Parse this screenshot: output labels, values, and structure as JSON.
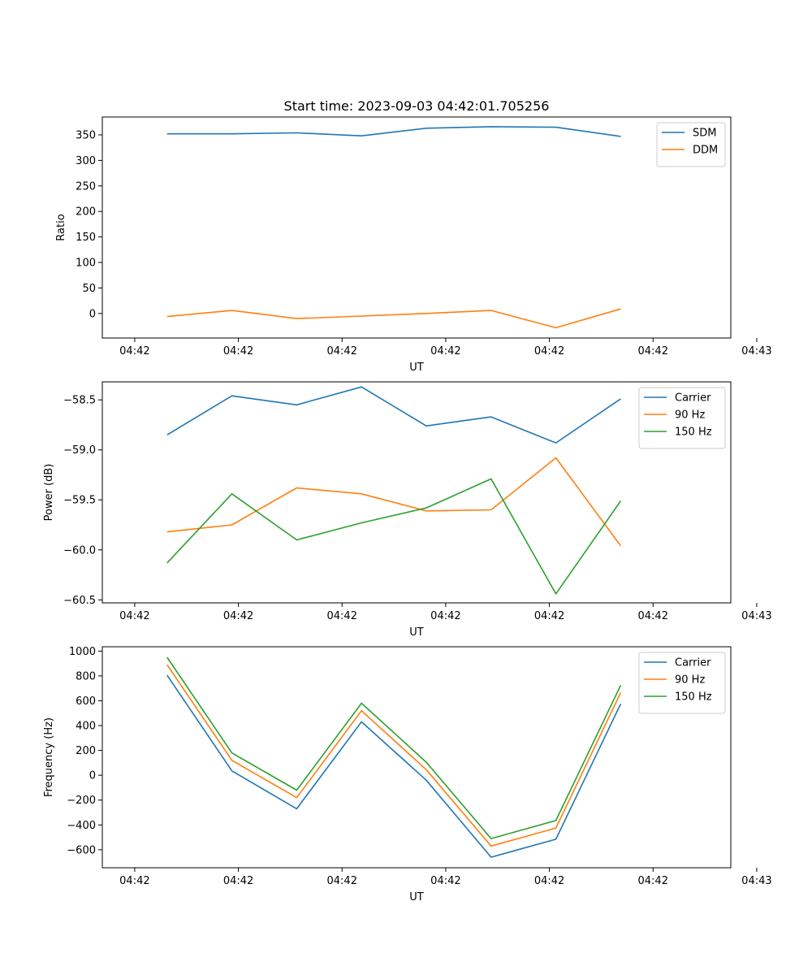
{
  "figure_title": "Start time: 2023-09-03 04:42:01.705256",
  "colors": {
    "c0": "#1f77b4",
    "c1": "#ff7f0e",
    "c2": "#2ca02c"
  },
  "chart_data": [
    {
      "type": "line",
      "title": "Start time: 2023-09-03 04:42:01.705256",
      "xlabel": "UT",
      "ylabel": "Ratio",
      "x": [
        0.5,
        1.5,
        2.5,
        3.5,
        4.5,
        5.5,
        6.5,
        7.5
      ],
      "xlim": [
        -0.5,
        9.2
      ],
      "xticks": [
        0,
        1.6,
        3.2,
        4.8,
        6.4,
        8.0,
        9.6
      ],
      "xtick_labels": [
        "04:42",
        "04:42",
        "04:42",
        "04:42",
        "04:42",
        "04:42",
        "04:43"
      ],
      "ylim": [
        -48,
        385
      ],
      "yticks": [
        0,
        50,
        100,
        150,
        200,
        250,
        300,
        350
      ],
      "ytick_labels": [
        "0",
        "50",
        "100",
        "150",
        "200",
        "250",
        "300",
        "350"
      ],
      "legend_position": "top-right",
      "series": [
        {
          "name": "SDM",
          "color": "#1f77b4",
          "values": [
            352,
            352,
            354,
            348,
            363,
            366,
            365,
            347
          ]
        },
        {
          "name": "DDM",
          "color": "#ff7f0e",
          "values": [
            -6,
            6,
            -10,
            -5,
            0,
            6,
            -28,
            9
          ]
        }
      ]
    },
    {
      "type": "line",
      "title": "",
      "xlabel": "UT",
      "ylabel": "Power (dB)",
      "x": [
        0.5,
        1.5,
        2.5,
        3.5,
        4.5,
        5.5,
        6.5,
        7.5
      ],
      "xlim": [
        -0.5,
        9.2
      ],
      "xticks": [
        0,
        1.6,
        3.2,
        4.8,
        6.4,
        8.0,
        9.6
      ],
      "xtick_labels": [
        "04:42",
        "04:42",
        "04:42",
        "04:42",
        "04:42",
        "04:42",
        "04:43"
      ],
      "ylim": [
        -60.53,
        -58.32
      ],
      "yticks": [
        -60.5,
        -60.0,
        -59.5,
        -59.0,
        -58.5
      ],
      "ytick_labels": [
        "−60.5",
        "−60.0",
        "−59.5",
        "−59.0",
        "−58.5"
      ],
      "legend_position": "top-right",
      "series": [
        {
          "name": "Carrier",
          "color": "#1f77b4",
          "values": [
            -58.85,
            -58.46,
            -58.55,
            -58.37,
            -58.76,
            -58.67,
            -58.93,
            -58.49
          ]
        },
        {
          "name": "90 Hz",
          "color": "#ff7f0e",
          "values": [
            -59.82,
            -59.75,
            -59.38,
            -59.44,
            -59.61,
            -59.6,
            -59.08,
            -59.96
          ]
        },
        {
          "name": "150 Hz",
          "color": "#2ca02c",
          "values": [
            -60.13,
            -59.44,
            -59.9,
            -59.73,
            -59.58,
            -59.29,
            -60.44,
            -59.51
          ]
        }
      ]
    },
    {
      "type": "line",
      "title": "",
      "xlabel": "UT",
      "ylabel": "Frequency (Hz)",
      "x": [
        0.5,
        1.5,
        2.5,
        3.5,
        4.5,
        5.5,
        6.5,
        7.5
      ],
      "xlim": [
        -0.5,
        9.2
      ],
      "xticks": [
        0,
        1.6,
        3.2,
        4.8,
        6.4,
        8.0,
        9.6
      ],
      "xtick_labels": [
        "04:42",
        "04:42",
        "04:42",
        "04:42",
        "04:42",
        "04:42",
        "04:43"
      ],
      "ylim": [
        -745,
        1035
      ],
      "yticks": [
        -600,
        -400,
        -200,
        0,
        200,
        400,
        600,
        800,
        1000
      ],
      "ytick_labels": [
        "−600",
        "−400",
        "−200",
        "0",
        "200",
        "400",
        "600",
        "800",
        "1000"
      ],
      "legend_position": "top-right",
      "series": [
        {
          "name": "Carrier",
          "color": "#1f77b4",
          "values": [
            805,
            35,
            -270,
            430,
            -40,
            -660,
            -515,
            575
          ]
        },
        {
          "name": "90 Hz",
          "color": "#ff7f0e",
          "values": [
            890,
            120,
            -180,
            520,
            45,
            -570,
            -425,
            665
          ]
        },
        {
          "name": "150 Hz",
          "color": "#2ca02c",
          "values": [
            950,
            180,
            -120,
            580,
            105,
            -510,
            -365,
            725
          ]
        }
      ]
    }
  ]
}
